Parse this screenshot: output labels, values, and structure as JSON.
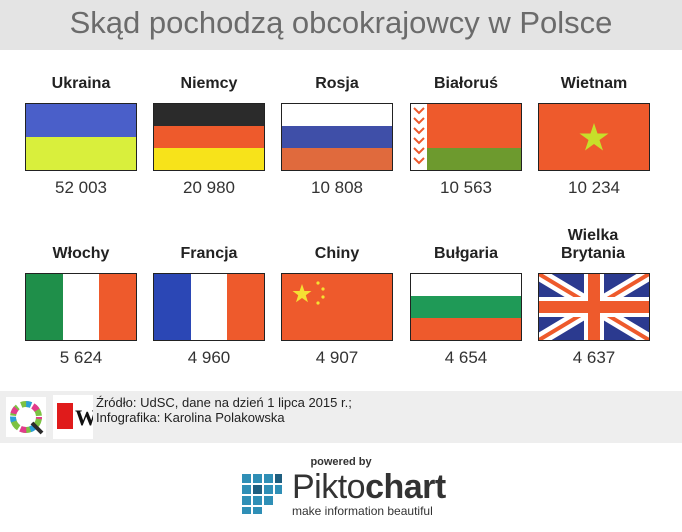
{
  "title": "Skąd pochodzą obcokrajowcy w Polsce",
  "chart_data": {
    "type": "table",
    "title": "Skąd pochodzą obcokrajowcy w Polsce",
    "categories": [
      "Ukraina",
      "Niemcy",
      "Rosja",
      "Białoruś",
      "Wietnam",
      "Włochy",
      "Francja",
      "Chiny",
      "Bułgaria",
      "Wielka Brytania"
    ],
    "values": [
      52003,
      20980,
      10808,
      10563,
      10234,
      5624,
      4960,
      4907,
      4654,
      4637
    ],
    "value_labels": [
      "52 003",
      "20 980",
      "10 808",
      "10 563",
      "10 234",
      "5 624",
      "4 960",
      "4 907",
      "4 654",
      "4 637"
    ],
    "flag_icons": [
      "ukraine-flag-icon",
      "germany-flag-icon",
      "russia-flag-icon",
      "belarus-flag-icon",
      "vietnam-flag-icon",
      "italy-flag-icon",
      "france-flag-icon",
      "china-flag-icon",
      "bulgaria-flag-icon",
      "uk-flag-icon"
    ]
  },
  "countries": [
    {
      "name": "Ukraina",
      "value": "52 003"
    },
    {
      "name": "Niemcy",
      "value": "20 980"
    },
    {
      "name": "Rosja",
      "value": "10 808"
    },
    {
      "name": "Białoruś",
      "value": "10 563"
    },
    {
      "name": "Wietnam",
      "value": "10 234"
    },
    {
      "name": "Włochy",
      "value": "5 624"
    },
    {
      "name": "Francja",
      "value": "4 960"
    },
    {
      "name": "Chiny",
      "value": "4 907"
    },
    {
      "name": "Bułgaria",
      "value": "4 654"
    },
    {
      "name": "Wielka Brytania",
      "value": "4 637"
    }
  ],
  "footer": {
    "source_line1": "Źródło: UdSC, dane na dzień 1 lipca 2015 r.;",
    "source_line2": "Infografika: Karolina Polakowska",
    "logo_left_icon": "q-logo-icon",
    "logo_right_icon": "w-logo-icon"
  },
  "branding": {
    "powered_by": "powered by",
    "name_part1": "Pikto",
    "name_part2": "chart",
    "tagline": "make information beautiful"
  },
  "colors": {
    "title_bg": "#e4e4e4",
    "title_text": "#6b6b6b",
    "footer_bg": "#eeeeee",
    "flag_orange": "#ee5a2c"
  }
}
